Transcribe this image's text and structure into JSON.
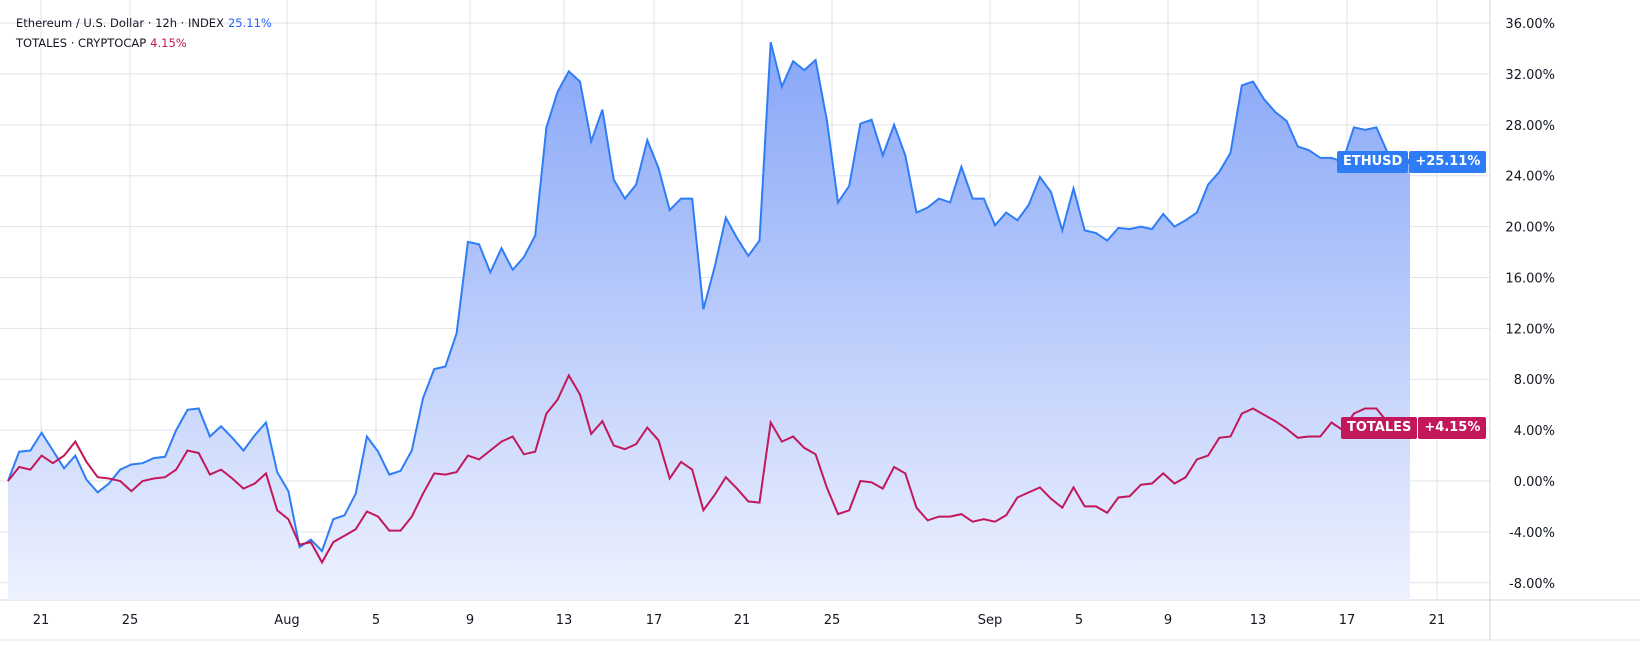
{
  "legend": {
    "series1_label": "Ethereum / U.S. Dollar · 12h · INDEX",
    "series1_value": "25.11%",
    "series2_label": "TOTALES · CRYPTOCAP",
    "series2_value": "4.15%"
  },
  "tags": {
    "eth_name": "ETHUSD",
    "eth_value": "+25.11%",
    "tot_name": "TOTALES",
    "tot_value": "+4.15%"
  },
  "colors": {
    "eth": "#2f7df6",
    "eth_fill_top": "#87a6f8",
    "eth_fill_bottom": "#eef2fe",
    "totales": "#c2185b",
    "grid": "#e0e3eb"
  },
  "chart_data": {
    "type": "area",
    "interval": "12h",
    "ylim": [
      -9.5,
      37.5
    ],
    "yticks": [
      "36.00%",
      "32.00%",
      "28.00%",
      "24.00%",
      "20.00%",
      "16.00%",
      "12.00%",
      "8.00%",
      "4.00%",
      "0.00%",
      "-4.00%",
      "-8.00%"
    ],
    "ytick_values": [
      36,
      32,
      28,
      24,
      20,
      16,
      12,
      8,
      4,
      0,
      -4,
      -8
    ],
    "xticks": [
      "21",
      "25",
      "Aug",
      "5",
      "9",
      "13",
      "17",
      "21",
      "25",
      "Sep",
      "5",
      "9",
      "13",
      "17",
      "21"
    ],
    "grid": true,
    "series": [
      {
        "name": "ETHUSD",
        "type": "area",
        "values": [
          0,
          2.3,
          2.4,
          3.8,
          2.4,
          1.0,
          2.0,
          0.1,
          -0.9,
          -0.2,
          0.9,
          1.3,
          1.4,
          1.8,
          1.9,
          4.0,
          5.6,
          5.7,
          3.5,
          4.3,
          3.4,
          2.4,
          3.6,
          4.6,
          0.7,
          -0.8,
          -5.2,
          -4.6,
          -5.5,
          -3.0,
          -2.7,
          -1.0,
          3.5,
          2.3,
          0.5,
          0.8,
          2.4,
          6.5,
          8.8,
          9.0,
          11.6,
          18.8,
          18.6,
          16.4,
          18.3,
          16.6,
          17.6,
          19.3,
          27.8,
          30.6,
          32.2,
          31.4,
          26.7,
          29.2,
          23.7,
          22.2,
          23.3,
          26.8,
          24.6,
          21.3,
          22.2,
          22.2,
          13.5,
          16.8,
          20.7,
          19.1,
          17.7,
          18.9,
          34.5,
          31.0,
          33.0,
          32.3,
          33.1,
          28.4,
          21.9,
          23.2,
          28.1,
          28.4,
          25.6,
          28.0,
          25.6,
          21.1,
          21.5,
          22.2,
          21.9,
          24.7,
          22.2,
          22.2,
          20.1,
          21.1,
          20.5,
          21.7,
          23.9,
          22.7,
          19.7,
          23.0,
          19.7,
          19.5,
          18.9,
          19.9,
          19.8,
          20.0,
          19.8,
          21.0,
          20.0,
          20.5,
          21.1,
          23.3,
          24.3,
          25.8,
          31.1,
          31.4,
          30.0,
          29.0,
          28.3,
          26.3,
          26.0,
          25.4,
          25.4,
          25.1,
          27.8,
          27.6,
          27.8,
          25.8,
          25.3,
          25.11
        ]
      },
      {
        "name": "TOTALES",
        "type": "line",
        "values": [
          0,
          1.1,
          0.9,
          2.0,
          1.4,
          2.0,
          3.1,
          1.5,
          0.3,
          0.2,
          0,
          -0.8,
          0,
          0.2,
          0.3,
          0.9,
          2.4,
          2.2,
          0.5,
          0.9,
          0.2,
          -0.6,
          -0.2,
          0.6,
          -2.3,
          -3.0,
          -5.0,
          -4.8,
          -6.4,
          -4.8,
          -4.3,
          -3.8,
          -2.4,
          -2.8,
          -3.9,
          -3.9,
          -2.8,
          -1.0,
          0.6,
          0.5,
          0.7,
          2.0,
          1.7,
          2.4,
          3.1,
          3.5,
          2.1,
          2.3,
          5.3,
          6.4,
          8.3,
          6.8,
          3.7,
          4.7,
          2.8,
          2.5,
          2.9,
          4.2,
          3.2,
          0.2,
          1.5,
          0.9,
          -2.3,
          -1.1,
          0.3,
          -0.6,
          -1.6,
          -1.7,
          4.6,
          3.1,
          3.5,
          2.6,
          2.1,
          -0.5,
          -2.6,
          -2.3,
          0,
          -0.1,
          -0.6,
          1.1,
          0.6,
          -2.1,
          -3.1,
          -2.8,
          -2.8,
          -2.6,
          -3.2,
          -3.0,
          -3.2,
          -2.7,
          -1.3,
          -0.9,
          -0.5,
          -1.4,
          -2.1,
          -0.5,
          -2.0,
          -2.0,
          -2.5,
          -1.3,
          -1.2,
          -0.3,
          -0.2,
          0.6,
          -0.2,
          0.3,
          1.7,
          2.0,
          3.4,
          3.5,
          5.3,
          5.7,
          5.2,
          4.7,
          4.1,
          3.4,
          3.5,
          3.5,
          4.6,
          4.0,
          5.3,
          5.7,
          5.7,
          4.6,
          4.0,
          4.15
        ]
      }
    ]
  }
}
